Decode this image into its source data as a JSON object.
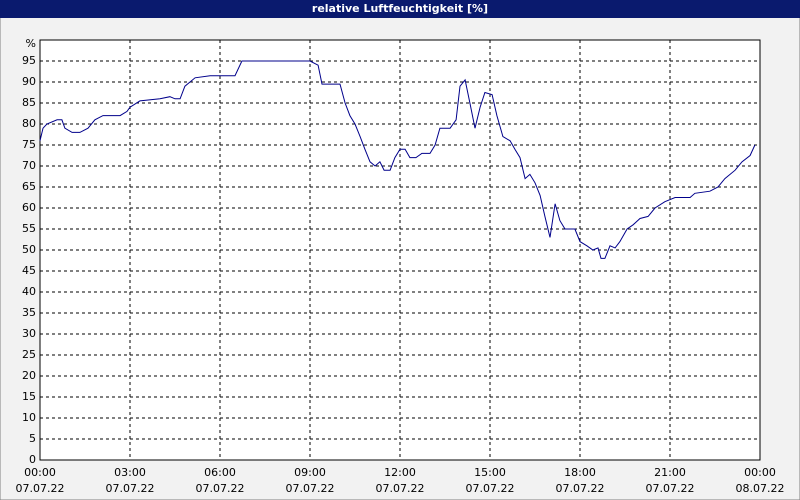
{
  "chart_data": {
    "type": "line",
    "title": "relative Luftfeuchtigkeit [%]",
    "y_label": "%",
    "xlim": [
      0,
      24
    ],
    "ylim": [
      0,
      100
    ],
    "yticks": [
      0,
      5,
      10,
      15,
      20,
      25,
      30,
      35,
      40,
      45,
      50,
      55,
      60,
      65,
      70,
      75,
      80,
      85,
      90,
      95
    ],
    "xticks": [
      {
        "value": 0,
        "label": "00:00",
        "date": "07.07.22"
      },
      {
        "value": 3,
        "label": "03:00",
        "date": "07.07.22"
      },
      {
        "value": 6,
        "label": "06:00",
        "date": "07.07.22"
      },
      {
        "value": 9,
        "label": "09:00",
        "date": "07.07.22"
      },
      {
        "value": 12,
        "label": "12:00",
        "date": "07.07.22"
      },
      {
        "value": 15,
        "label": "15:00",
        "date": "07.07.22"
      },
      {
        "value": 18,
        "label": "18:00",
        "date": "07.07.22"
      },
      {
        "value": 21,
        "label": "21:00",
        "date": "07.07.22"
      },
      {
        "value": 24,
        "label": "00:00",
        "date": "08.07.22"
      }
    ],
    "grid": true,
    "color": "#00008b",
    "x": [
      0,
      0.1,
      0.23,
      0.57,
      0.73,
      0.83,
      1.07,
      1.33,
      1.6,
      1.83,
      2.1,
      2.67,
      2.9,
      3,
      3.33,
      4,
      4.33,
      4.5,
      4.67,
      4.83,
      5.17,
      5.67,
      6.5,
      6.73,
      9,
      9.27,
      9.4,
      10,
      10.17,
      10.33,
      10.5,
      10.67,
      10.83,
      11,
      11.17,
      11.33,
      11.47,
      11.67,
      11.83,
      12,
      12.17,
      12.33,
      12.53,
      12.73,
      13,
      13.17,
      13.33,
      13.67,
      13.87,
      14,
      14.17,
      14.33,
      14.5,
      14.67,
      14.83,
      15.07,
      15.23,
      15.43,
      15.67,
      15.83,
      16,
      16.17,
      16.33,
      16.5,
      16.67,
      16.83,
      17,
      17.17,
      17.33,
      17.5,
      17.83,
      18,
      18.23,
      18.43,
      18.6,
      18.7,
      18.83,
      19,
      19.17,
      19.33,
      19.57,
      19.77,
      20,
      20.27,
      20.5,
      20.83,
      21.17,
      21.67,
      21.83,
      22.33,
      22.6,
      22.83,
      23.17,
      23.4,
      23.67,
      23.83
    ],
    "values": [
      76,
      79,
      80,
      81,
      81,
      79,
      78,
      78,
      79,
      81,
      82,
      82,
      83,
      84,
      85.5,
      86,
      86.5,
      86,
      86,
      89,
      91,
      91.5,
      91.5,
      95,
      95,
      94,
      89.5,
      89.5,
      85,
      82,
      80,
      77,
      74,
      71,
      70,
      71,
      69,
      69,
      72,
      74,
      74,
      72,
      72,
      73,
      73,
      75,
      79,
      79,
      81,
      89,
      90.5,
      85,
      79,
      84,
      87.5,
      87,
      82,
      77,
      76,
      74,
      72,
      67,
      68,
      66,
      63,
      58,
      53,
      61,
      57,
      55,
      55,
      52,
      51,
      50,
      50.5,
      48,
      48,
      51,
      50.5,
      52,
      55,
      56,
      57.5,
      58,
      60,
      61.5,
      62.5,
      62.5,
      63.5,
      64,
      65,
      67,
      69,
      71,
      72.5,
      75
    ]
  }
}
